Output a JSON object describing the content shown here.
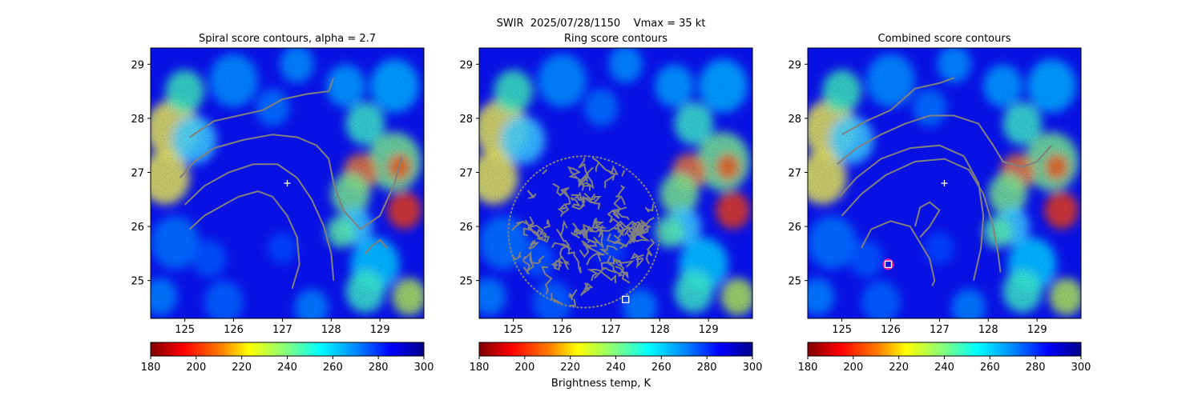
{
  "suptitle": "SWIR  2025/07/28/1150    Vmax = 35 kt",
  "colorbar_label": "Brightness temp, K",
  "chart_data": [
    {
      "type": "heatmap",
      "title": "Spiral score contours, alpha =  2.7",
      "xlim": [
        124.3,
        129.9
      ],
      "ylim": [
        24.3,
        29.3
      ],
      "x_ticks": [
        125,
        126,
        127,
        128,
        129
      ],
      "y_ticks": [
        25,
        26,
        27,
        28,
        29
      ],
      "colormap": "jet_reversed",
      "clim": [
        180,
        300
      ],
      "colorbar_ticks": [
        180,
        200,
        220,
        240,
        260,
        280,
        300
      ],
      "center_marker": {
        "lon": 127.1,
        "lat": 26.8,
        "symbol": "+"
      },
      "contours": [
        [
          [
            124.9,
            26.9
          ],
          [
            125.2,
            27.2
          ],
          [
            125.6,
            27.45
          ],
          [
            126.2,
            27.6
          ],
          [
            126.8,
            27.7
          ],
          [
            127.3,
            27.65
          ],
          [
            127.7,
            27.5
          ],
          [
            127.95,
            27.25
          ],
          [
            128.05,
            26.8
          ],
          [
            128.25,
            26.3
          ],
          [
            128.6,
            25.95
          ],
          [
            129.0,
            26.2
          ],
          [
            129.3,
            26.8
          ],
          [
            129.45,
            27.3
          ]
        ],
        [
          [
            125.1,
            27.65
          ],
          [
            125.6,
            27.95
          ],
          [
            126.1,
            28.05
          ],
          [
            126.6,
            28.15
          ],
          [
            127.0,
            28.35
          ],
          [
            127.5,
            28.45
          ],
          [
            127.95,
            28.5
          ],
          [
            128.05,
            28.75
          ]
        ],
        [
          [
            125.0,
            26.4
          ],
          [
            125.4,
            26.75
          ],
          [
            125.9,
            27.0
          ],
          [
            126.4,
            27.15
          ],
          [
            126.9,
            27.15
          ],
          [
            127.3,
            26.9
          ],
          [
            127.6,
            26.5
          ],
          [
            127.85,
            26.0
          ],
          [
            128.0,
            25.5
          ],
          [
            128.05,
            25.0
          ]
        ],
        [
          [
            125.1,
            25.95
          ],
          [
            125.4,
            26.2
          ],
          [
            125.8,
            26.4
          ],
          [
            126.1,
            26.55
          ],
          [
            126.5,
            26.65
          ],
          [
            126.8,
            26.55
          ],
          [
            127.1,
            26.2
          ],
          [
            127.3,
            25.8
          ],
          [
            127.35,
            25.3
          ],
          [
            127.2,
            24.85
          ]
        ],
        [
          [
            128.7,
            25.5
          ],
          [
            128.85,
            25.65
          ],
          [
            129.0,
            25.75
          ],
          [
            129.15,
            25.6
          ]
        ]
      ],
      "markers": []
    },
    {
      "type": "heatmap",
      "title": "Ring score contours",
      "xlim": [
        124.3,
        129.9
      ],
      "ylim": [
        24.3,
        29.3
      ],
      "x_ticks": [
        125,
        126,
        127,
        128,
        129
      ],
      "y_ticks": [
        25,
        26,
        27,
        28,
        29
      ],
      "colormap": "jet_reversed",
      "clim": [
        180,
        300
      ],
      "colorbar_ticks": [
        180,
        200,
        220,
        240,
        260,
        280,
        300
      ],
      "ring_region": {
        "lon": 126.45,
        "lat": 25.9,
        "rlon": 1.55,
        "rlat": 1.4
      },
      "markers": [
        {
          "lon": 127.3,
          "lat": 24.65,
          "symbol": "square"
        }
      ]
    },
    {
      "type": "heatmap",
      "title": "Combined score contours",
      "xlim": [
        124.3,
        129.9
      ],
      "ylim": [
        24.3,
        29.3
      ],
      "x_ticks": [
        125,
        126,
        127,
        128,
        129
      ],
      "y_ticks": [
        25,
        26,
        27,
        28,
        29
      ],
      "colormap": "jet_reversed",
      "clim": [
        180,
        300
      ],
      "colorbar_ticks": [
        180,
        200,
        220,
        240,
        260,
        280,
        300
      ],
      "center_marker": {
        "lon": 127.1,
        "lat": 26.8,
        "symbol": "+"
      },
      "contours": [
        [
          [
            124.9,
            27.15
          ],
          [
            125.3,
            27.45
          ],
          [
            125.8,
            27.7
          ],
          [
            126.3,
            27.9
          ],
          [
            126.8,
            28.05
          ],
          [
            127.3,
            28.05
          ],
          [
            127.8,
            27.9
          ],
          [
            128.1,
            27.5
          ],
          [
            128.3,
            27.2
          ],
          [
            128.7,
            27.1
          ],
          [
            129.0,
            27.2
          ],
          [
            129.3,
            27.5
          ]
        ],
        [
          [
            125.0,
            27.7
          ],
          [
            125.5,
            27.95
          ],
          [
            126.0,
            28.15
          ],
          [
            126.5,
            28.55
          ],
          [
            127.0,
            28.65
          ],
          [
            127.3,
            28.75
          ]
        ],
        [
          [
            125.0,
            26.2
          ],
          [
            125.4,
            26.6
          ],
          [
            125.9,
            26.95
          ],
          [
            126.5,
            27.2
          ],
          [
            127.1,
            27.25
          ],
          [
            127.6,
            27.05
          ],
          [
            127.9,
            26.6
          ],
          [
            128.1,
            26.0
          ],
          [
            128.2,
            25.5
          ],
          [
            128.25,
            25.15
          ]
        ],
        [
          [
            124.95,
            26.55
          ],
          [
            125.3,
            26.9
          ],
          [
            125.8,
            27.25
          ],
          [
            126.4,
            27.45
          ],
          [
            127.0,
            27.5
          ],
          [
            127.5,
            27.3
          ],
          [
            127.8,
            26.8
          ],
          [
            127.9,
            26.2
          ],
          [
            127.85,
            25.6
          ],
          [
            127.7,
            25.0
          ]
        ],
        [
          [
            125.4,
            25.6
          ],
          [
            125.6,
            25.95
          ],
          [
            126.0,
            26.1
          ],
          [
            126.4,
            26.0
          ],
          [
            126.6,
            25.7
          ],
          [
            126.8,
            25.4
          ],
          [
            126.9,
            25.0
          ],
          [
            126.85,
            24.9
          ]
        ],
        [
          [
            126.5,
            26.0
          ],
          [
            126.6,
            26.35
          ],
          [
            126.8,
            26.45
          ],
          [
            127.0,
            26.3
          ],
          [
            126.8,
            26.0
          ],
          [
            126.6,
            25.8
          ]
        ]
      ],
      "markers": [
        {
          "lon": 125.95,
          "lat": 25.3,
          "symbol": "square-circle"
        }
      ]
    }
  ]
}
